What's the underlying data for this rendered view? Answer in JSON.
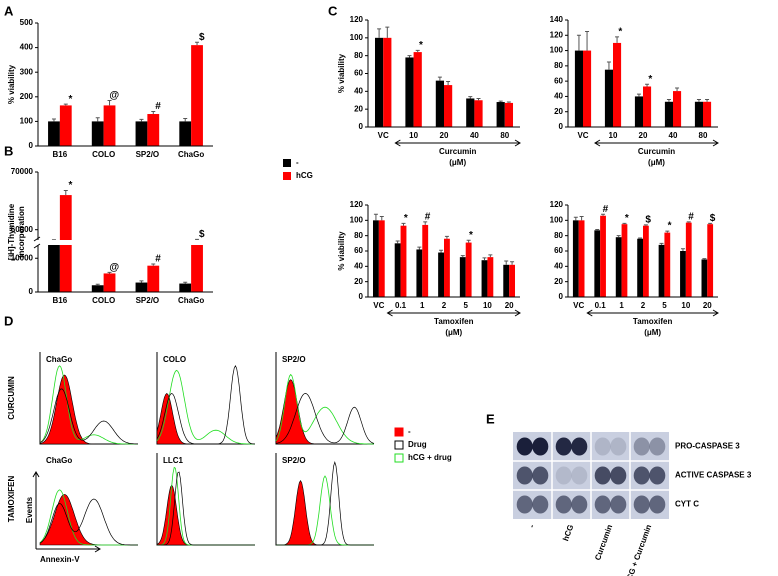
{
  "panels": {
    "a": "A",
    "b": "B",
    "c": "C",
    "d": "D",
    "e": "E"
  },
  "chart_data": [
    {
      "type": "bar",
      "ylabel": "% viability",
      "categories": [
        "B16",
        "COLO",
        "SP2/O",
        "ChaGo"
      ],
      "ylim": [
        0,
        500
      ],
      "yticks": [
        0,
        100,
        200,
        300,
        400,
        500
      ],
      "series": [
        {
          "name": "-",
          "color": "#000000",
          "values": [
            100,
            100,
            100,
            100
          ],
          "errors": [
            10,
            15,
            8,
            12
          ]
        },
        {
          "name": "hCG",
          "color": "#ff0000",
          "values": [
            165,
            165,
            130,
            410
          ],
          "errors": [
            5,
            20,
            10,
            12
          ]
        }
      ],
      "annotations": [
        "*",
        "@",
        "#",
        "$"
      ]
    },
    {
      "type": "bar",
      "ylabel": [
        "[³H]-Thymidine",
        "Incorporation"
      ],
      "categories": [
        "B16",
        "COLO",
        "SP2/O",
        "ChaGo"
      ],
      "ylim": [
        0,
        70000
      ],
      "yticks": [
        0,
        10000,
        60000,
        70000
      ],
      "axis_break": [
        16000,
        57000
      ],
      "series": [
        {
          "color": "#000000",
          "values": [
            15000,
            2000,
            2800,
            2500
          ],
          "errors": [
            500,
            300,
            500,
            400
          ]
        },
        {
          "color": "#ff0000",
          "values": [
            66000,
            5500,
            7800,
            15000
          ],
          "errors": [
            800,
            300,
            500,
            600
          ]
        }
      ],
      "annotations": [
        "*",
        "@",
        "#",
        "$"
      ]
    },
    {
      "type": "bar",
      "ylabel": "% viability",
      "xlabel": [
        "Curcumin",
        "(μM)"
      ],
      "categories": [
        "VC",
        "10",
        "20",
        "40",
        "80"
      ],
      "ylim": [
        0,
        120
      ],
      "yticks": [
        0,
        20,
        40,
        60,
        80,
        100,
        120
      ],
      "series": [
        {
          "color": "#000000",
          "values": [
            100,
            78,
            52,
            32,
            28
          ],
          "errors": [
            10,
            2,
            4,
            2,
            1
          ]
        },
        {
          "color": "#ff0000",
          "values": [
            100,
            84,
            47,
            30,
            27
          ],
          "errors": [
            12,
            2,
            4,
            2,
            1
          ]
        }
      ],
      "annotations": [
        null,
        "*",
        null,
        null,
        null
      ]
    },
    {
      "type": "bar",
      "xlabel": [
        "Curcumin",
        "(μM)"
      ],
      "categories": [
        "VC",
        "10",
        "20",
        "40",
        "80"
      ],
      "ylim": [
        0,
        140
      ],
      "yticks": [
        0,
        20,
        40,
        60,
        80,
        100,
        120,
        140
      ],
      "series": [
        {
          "color": "#000000",
          "values": [
            100,
            75,
            40,
            33,
            33
          ],
          "errors": [
            20,
            10,
            3,
            3,
            3
          ]
        },
        {
          "color": "#ff0000",
          "values": [
            100,
            110,
            53,
            47,
            33
          ],
          "errors": [
            25,
            8,
            3,
            4,
            3
          ]
        }
      ],
      "annotations": [
        null,
        "*",
        "*",
        null,
        null
      ]
    },
    {
      "type": "bar",
      "ylabel": "% viability",
      "xlabel": [
        "Tamoxifen",
        "(μM)"
      ],
      "categories": [
        "VC",
        "0.1",
        "1",
        "2",
        "5",
        "10",
        "20"
      ],
      "ylim": [
        0,
        120
      ],
      "yticks": [
        0,
        20,
        40,
        60,
        80,
        100,
        120
      ],
      "series": [
        {
          "color": "#000000",
          "values": [
            100,
            70,
            62,
            58,
            52,
            48,
            42
          ],
          "errors": [
            8,
            3,
            3,
            3,
            2,
            3,
            5
          ]
        },
        {
          "color": "#ff0000",
          "values": [
            100,
            93,
            94,
            76,
            71,
            52,
            42
          ],
          "errors": [
            5,
            3,
            4,
            3,
            3,
            3,
            4
          ]
        }
      ],
      "annotations": [
        null,
        "*",
        "#",
        null,
        "*",
        null,
        null
      ]
    },
    {
      "type": "bar",
      "xlabel": [
        "Tamoxifen",
        "(μM)"
      ],
      "categories": [
        "VC",
        "0.1",
        "1",
        "2",
        "5",
        "10",
        "20"
      ],
      "ylim": [
        0,
        120
      ],
      "yticks": [
        0,
        20,
        40,
        60,
        80,
        100,
        120
      ],
      "series": [
        {
          "color": "#000000",
          "values": [
            100,
            87,
            78,
            76,
            68,
            60,
            49
          ],
          "errors": [
            4,
            1,
            2,
            1,
            2,
            3,
            1
          ]
        },
        {
          "color": "#ff0000",
          "values": [
            100,
            106,
            95,
            93,
            84,
            97,
            95
          ],
          "errors": [
            5,
            2,
            1,
            1,
            2,
            1,
            1
          ]
        }
      ],
      "annotations": [
        null,
        "#",
        "*",
        "$",
        "*",
        "#",
        "$"
      ]
    }
  ],
  "flow": {
    "row_labels": [
      "CURCUMIN",
      "TAMOXIFEN"
    ],
    "titles": [
      [
        "ChaGo",
        "COLO",
        "SP2/O"
      ],
      [
        "ChaGo",
        "LLC1",
        "SP2/O"
      ]
    ],
    "y_axis": "Events",
    "x_axis": "Annexin-V",
    "legend": [
      "-",
      "Drug",
      "hCG + drug"
    ]
  },
  "blot": {
    "rows": [
      "PRO-CASPASE 3",
      "ACTIVE CASPASE 3",
      "CYT C"
    ],
    "columns": [
      "-",
      "hCG",
      "Curcumin",
      "hCG + Curcumin"
    ]
  }
}
